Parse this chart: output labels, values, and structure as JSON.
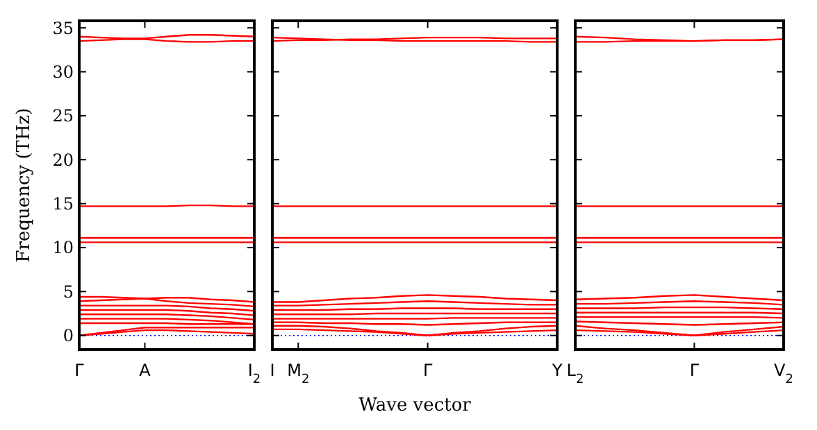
{
  "chart_data": [
    {
      "type": "line",
      "ylabel": "Frequency (THz)",
      "categories": [
        "Γ",
        null,
        null,
        "A",
        null,
        null,
        null,
        null,
        "I$_{2}$"
      ],
      "ylim": [
        -1.6,
        35.8
      ],
      "yticks": [
        0,
        5,
        10,
        15,
        20,
        25,
        30,
        35
      ],
      "marker": "none",
      "line_style": "solid",
      "ref_lines": [
        {
          "axis": "y",
          "value": 0,
          "color": "#0000ff",
          "line_style": "dotted"
        }
      ],
      "series": [
        {
          "color": "#ff0000",
          "values": [
            34.0,
            33.9,
            33.8,
            33.8,
            34.0,
            34.2,
            34.2,
            34.1,
            34.0
          ]
        },
        {
          "color": "#ff0000",
          "values": [
            33.5,
            33.6,
            33.7,
            33.7,
            33.5,
            33.4,
            33.4,
            33.5,
            33.5
          ]
        },
        {
          "color": "#ff0000",
          "values": [
            14.7,
            14.7,
            14.7,
            14.7,
            14.7,
            14.8,
            14.8,
            14.7,
            14.7
          ]
        },
        {
          "color": "#ff0000",
          "values": [
            11.1,
            11.1,
            11.1,
            11.1,
            11.1,
            11.1,
            11.1,
            11.1,
            11.1
          ]
        },
        {
          "color": "#ff0000",
          "values": [
            10.6,
            10.6,
            10.6,
            10.6,
            10.6,
            10.6,
            10.6,
            10.6,
            10.6
          ]
        },
        {
          "color": "#ff0000",
          "values": [
            4.4,
            4.4,
            4.3,
            4.2,
            4.3,
            4.3,
            4.1,
            4.0,
            3.8
          ]
        },
        {
          "color": "#ff0000",
          "values": [
            3.9,
            4.0,
            4.1,
            4.2,
            3.9,
            3.7,
            3.6,
            3.5,
            3.3
          ]
        },
        {
          "color": "#ff0000",
          "values": [
            3.4,
            3.4,
            3.4,
            3.4,
            3.4,
            3.3,
            3.1,
            3.0,
            2.8
          ]
        },
        {
          "color": "#ff0000",
          "values": [
            2.9,
            2.9,
            2.9,
            2.9,
            2.9,
            2.8,
            2.6,
            2.5,
            2.3
          ]
        },
        {
          "color": "#ff0000",
          "values": [
            2.4,
            2.4,
            2.4,
            2.4,
            2.4,
            2.3,
            2.2,
            2.0,
            1.8
          ]
        },
        {
          "color": "#ff0000",
          "values": [
            1.9,
            1.9,
            1.9,
            1.9,
            1.9,
            1.8,
            1.7,
            1.5,
            1.3
          ]
        },
        {
          "color": "#ff0000",
          "values": [
            1.4,
            1.4,
            1.4,
            1.4,
            1.4,
            1.3,
            1.3,
            1.3,
            1.3
          ]
        },
        {
          "color": "#ff0000",
          "values": [
            0,
            0.3,
            0.6,
            0.9,
            0.9,
            0.9,
            0.9,
            0.9,
            0.9
          ]
        },
        {
          "color": "#ff0000",
          "values": [
            0,
            0.2,
            0.4,
            0.6,
            0.6,
            0.5,
            0.4,
            0.3,
            0.2
          ]
        }
      ]
    },
    {
      "type": "line",
      "xlabel": "Wave vector",
      "tick_labels": "x",
      "categories": [
        "I",
        "M$_{2}$",
        null,
        null,
        null,
        null,
        "Γ",
        null,
        null,
        null,
        null,
        "Y"
      ],
      "ylim": [
        -1.6,
        35.8
      ],
      "yticks": [
        0,
        5,
        10,
        15,
        20,
        25,
        30,
        35
      ],
      "marker": "none",
      "line_style": "solid",
      "ref_lines": [
        {
          "axis": "y",
          "value": 0,
          "color": "#0000ff",
          "line_style": "dotted"
        }
      ],
      "series": [
        {
          "color": "#ff0000",
          "values": [
            33.9,
            33.8,
            33.7,
            33.6,
            33.6,
            33.5,
            33.5,
            33.5,
            33.5,
            33.5,
            33.4,
            33.4
          ]
        },
        {
          "color": "#ff0000",
          "values": [
            33.5,
            33.6,
            33.6,
            33.7,
            33.7,
            33.8,
            33.9,
            33.9,
            33.9,
            33.8,
            33.8,
            33.8
          ]
        },
        {
          "color": "#ff0000",
          "values": [
            14.7,
            14.7,
            14.7,
            14.7,
            14.7,
            14.7,
            14.7,
            14.7,
            14.7,
            14.7,
            14.7,
            14.7
          ]
        },
        {
          "color": "#ff0000",
          "values": [
            11.1,
            11.1,
            11.1,
            11.1,
            11.1,
            11.1,
            11.1,
            11.1,
            11.1,
            11.1,
            11.1,
            11.1
          ]
        },
        {
          "color": "#ff0000",
          "values": [
            10.6,
            10.6,
            10.6,
            10.6,
            10.6,
            10.6,
            10.6,
            10.6,
            10.6,
            10.6,
            10.6,
            10.6
          ]
        },
        {
          "color": "#ff0000",
          "values": [
            3.8,
            3.8,
            4.0,
            4.2,
            4.3,
            4.5,
            4.6,
            4.5,
            4.4,
            4.2,
            4.1,
            4.0
          ]
        },
        {
          "color": "#ff0000",
          "values": [
            3.4,
            3.4,
            3.5,
            3.6,
            3.7,
            3.8,
            3.9,
            3.8,
            3.7,
            3.6,
            3.5,
            3.5
          ]
        },
        {
          "color": "#ff0000",
          "values": [
            2.9,
            2.9,
            2.9,
            3.0,
            3.0,
            3.1,
            3.1,
            3.1,
            3.0,
            3.0,
            3.0,
            3.0
          ]
        },
        {
          "color": "#ff0000",
          "values": [
            2.4,
            2.4,
            2.4,
            2.4,
            2.5,
            2.5,
            2.5,
            2.5,
            2.5,
            2.5,
            2.5,
            2.5
          ]
        },
        {
          "color": "#ff0000",
          "values": [
            1.9,
            1.9,
            1.9,
            1.9,
            1.9,
            1.9,
            1.9,
            2.0,
            2.0,
            2.0,
            2.0,
            2.0
          ]
        },
        {
          "color": "#ff0000",
          "values": [
            1.5,
            1.5,
            1.4,
            1.4,
            1.3,
            1.3,
            1.2,
            1.3,
            1.4,
            1.5,
            1.5,
            1.5
          ]
        },
        {
          "color": "#ff0000",
          "values": [
            1.1,
            1.1,
            1.0,
            0.8,
            0.5,
            0.3,
            0,
            0.3,
            0.5,
            0.8,
            1.0,
            1.1
          ]
        },
        {
          "color": "#ff0000",
          "values": [
            0.7,
            0.7,
            0.6,
            0.5,
            0.4,
            0.2,
            0,
            0.2,
            0.3,
            0.4,
            0.5,
            0.6
          ]
        }
      ]
    },
    {
      "type": "line",
      "tick_labels": "x",
      "categories": [
        "L$_{2}$",
        null,
        null,
        null,
        "Γ",
        null,
        null,
        "V$_{2}$"
      ],
      "ylim": [
        -1.6,
        35.8
      ],
      "yticks": [
        0,
        5,
        10,
        15,
        20,
        25,
        30,
        35
      ],
      "marker": "none",
      "line_style": "solid",
      "ref_lines": [
        {
          "axis": "y",
          "value": 0,
          "color": "#0000ff",
          "line_style": "dotted"
        }
      ],
      "series": [
        {
          "color": "#ff0000",
          "values": [
            34.0,
            33.9,
            33.7,
            33.6,
            33.5,
            33.6,
            33.6,
            33.7
          ]
        },
        {
          "color": "#ff0000",
          "values": [
            33.4,
            33.4,
            33.5,
            33.5,
            33.5,
            33.6,
            33.6,
            33.7
          ]
        },
        {
          "color": "#ff0000",
          "values": [
            14.7,
            14.7,
            14.7,
            14.7,
            14.7,
            14.7,
            14.7,
            14.7
          ]
        },
        {
          "color": "#ff0000",
          "values": [
            11.1,
            11.1,
            11.1,
            11.1,
            11.1,
            11.1,
            11.1,
            11.1
          ]
        },
        {
          "color": "#ff0000",
          "values": [
            10.6,
            10.6,
            10.6,
            10.6,
            10.6,
            10.6,
            10.6,
            10.6
          ]
        },
        {
          "color": "#ff0000",
          "values": [
            4.1,
            4.2,
            4.3,
            4.5,
            4.6,
            4.4,
            4.2,
            4.0
          ]
        },
        {
          "color": "#ff0000",
          "values": [
            3.6,
            3.6,
            3.7,
            3.8,
            3.9,
            3.8,
            3.7,
            3.5
          ]
        },
        {
          "color": "#ff0000",
          "values": [
            3.1,
            3.1,
            3.1,
            3.2,
            3.2,
            3.2,
            3.1,
            3.0
          ]
        },
        {
          "color": "#ff0000",
          "values": [
            2.6,
            2.6,
            2.6,
            2.6,
            2.6,
            2.6,
            2.6,
            2.5
          ]
        },
        {
          "color": "#ff0000",
          "values": [
            2.1,
            2.1,
            2.1,
            2.1,
            2.1,
            2.1,
            2.1,
            2.0
          ]
        },
        {
          "color": "#ff0000",
          "values": [
            1.6,
            1.5,
            1.4,
            1.3,
            1.2,
            1.3,
            1.4,
            1.5
          ]
        },
        {
          "color": "#ff0000",
          "values": [
            1.1,
            0.8,
            0.6,
            0.3,
            0,
            0.4,
            0.7,
            1.0
          ]
        },
        {
          "color": "#ff0000",
          "values": [
            0.6,
            0.5,
            0.4,
            0.2,
            0,
            0.2,
            0.4,
            0.6
          ]
        }
      ]
    }
  ]
}
